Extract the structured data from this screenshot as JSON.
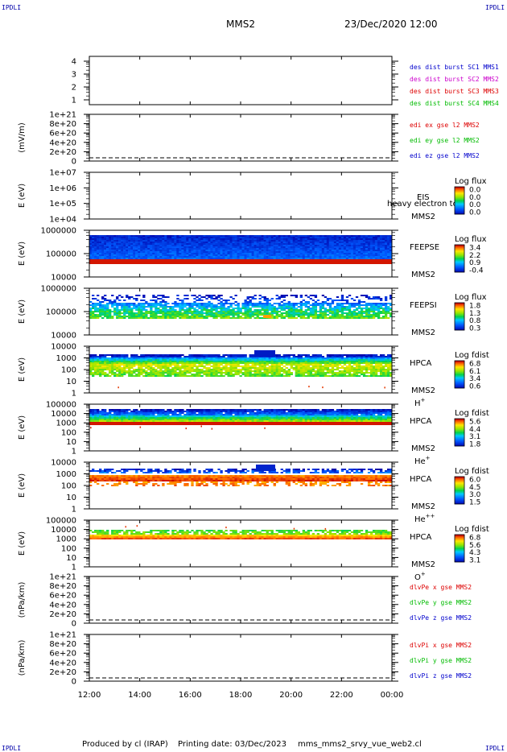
{
  "header": {
    "corner_label": "IPDLI",
    "spacecraft": "MMS2",
    "datetime": "23/Dec/2020 12:00"
  },
  "footer": {
    "produced_by": "Produced by cl (IRAP)",
    "printing_date": "Printing date: 03/Dec/2023",
    "filename": "mms_mms2_srvy_vue_web2.cl"
  },
  "chart_data": {
    "type": "heatmap",
    "x_ticks": [
      "12:00",
      "14:00",
      "16:00",
      "18:00",
      "20:00",
      "22:00",
      "00:00"
    ],
    "x_range_hours": [
      12,
      24
    ],
    "panels": [
      {
        "id": "des-dist",
        "kind": "lines",
        "ylabel": "",
        "y_ticks": [
          "4",
          "3",
          "2",
          "1"
        ],
        "ylim": [
          0.5,
          4.5
        ],
        "legend": [
          {
            "text": "des dist burst SC1 MMS1",
            "color": "#0000cc"
          },
          {
            "text": "des dist burst SC2 MMS2",
            "color": "#cc00cc"
          },
          {
            "text": "des dist burst SC3 MMS3",
            "color": "#dd0000"
          },
          {
            "text": "des dist burst SC4 MMS4",
            "color": "#00bb00"
          }
        ]
      },
      {
        "id": "edi-e",
        "kind": "lines",
        "ylabel": "(mV/m)",
        "y_ticks": [
          "1e+21",
          "8e+20",
          "6e+20",
          "4e+20",
          "2e+20",
          "0"
        ],
        "ylim": [
          0,
          1e+21
        ],
        "zero_line": true,
        "legend": [
          {
            "text": "edi ex gse l2 MMS2",
            "color": "#dd0000"
          },
          {
            "text": "edi ey gse l2 MMS2",
            "color": "#00bb00"
          },
          {
            "text": "edi ez gse l2 MMS2",
            "color": "#0000cc"
          }
        ]
      },
      {
        "id": "eis",
        "kind": "spectrogram",
        "ylabel": "E (eV)",
        "y_ticks": [
          "1e+07",
          "1e+06",
          "1e+05",
          "1e+04"
        ],
        "instrument": "EIS",
        "overlay_note": "heavy electron to",
        "sc": "MMS2",
        "species": "",
        "cbar_title": "Log flux",
        "cbar_ticks": [
          "0.0",
          "0.0",
          "0.0",
          "0.0"
        ],
        "fill": "none"
      },
      {
        "id": "feepse",
        "kind": "spectrogram",
        "ylabel": "E (eV)",
        "y_ticks": [
          "1000000",
          "100000",
          "10000"
        ],
        "instrument": "FEEPSE",
        "sc": "MMS2",
        "species": "",
        "cbar_title": "Log flux",
        "cbar_ticks": [
          "3.4",
          "2.2",
          "0.9",
          "-0.4"
        ],
        "fill": "feepse"
      },
      {
        "id": "feepsi",
        "kind": "spectrogram",
        "ylabel": "E (eV)",
        "y_ticks": [
          "1000000",
          "100000",
          "10000"
        ],
        "instrument": "FEEPSI",
        "sc": "MMS2",
        "species": "",
        "cbar_title": "Log flux",
        "cbar_ticks": [
          "1.8",
          "1.3",
          "0.8",
          "0.3"
        ],
        "fill": "feepsi"
      },
      {
        "id": "hpca-h",
        "kind": "spectrogram",
        "ylabel": "E (eV)",
        "y_ticks": [
          "10000",
          "1000",
          "100",
          "10",
          "1"
        ],
        "instrument": "HPCA",
        "sc": "MMS2",
        "species": "H+",
        "cbar_title": "Log fdist",
        "cbar_ticks": [
          "6.8",
          "6.1",
          "3.4",
          "0.6"
        ],
        "fill": "hpca-h"
      },
      {
        "id": "hpca-he1",
        "kind": "spectrogram",
        "ylabel": "E (eV)",
        "y_ticks": [
          "100000",
          "10000",
          "1000",
          "100",
          "10",
          "1"
        ],
        "instrument": "HPCA",
        "sc": "MMS2",
        "species": "He+",
        "cbar_title": "Log fdist",
        "cbar_ticks": [
          "5.6",
          "4.4",
          "3.1",
          "1.8"
        ],
        "fill": "hpca-he1"
      },
      {
        "id": "hpca-he2",
        "kind": "spectrogram",
        "ylabel": "E (eV)",
        "y_ticks": [
          "10000",
          "1000",
          "100",
          "10",
          "1"
        ],
        "instrument": "HPCA",
        "sc": "MMS2",
        "species": "He++",
        "cbar_title": "Log fdist",
        "cbar_ticks": [
          "6.0",
          "4.5",
          "3.0",
          "1.5"
        ],
        "fill": "hpca-he2"
      },
      {
        "id": "hpca-o",
        "kind": "spectrogram",
        "ylabel": "E (eV)",
        "y_ticks": [
          "100000",
          "10000",
          "1000",
          "100",
          "10",
          "1"
        ],
        "instrument": "HPCA",
        "sc": "MMS2",
        "species": "O+",
        "cbar_title": "Log fdist",
        "cbar_ticks": [
          "6.8",
          "5.6",
          "4.3",
          "3.1"
        ],
        "fill": "hpca-o"
      },
      {
        "id": "dlvpe",
        "kind": "lines",
        "ylabel": "(nPa/km)",
        "y_ticks": [
          "1e+21",
          "8e+20",
          "6e+20",
          "4e+20",
          "2e+20",
          "0"
        ],
        "ylim": [
          0,
          1e+21
        ],
        "zero_line": true,
        "legend": [
          {
            "text": "dlvPe x gse MMS2",
            "color": "#dd0000"
          },
          {
            "text": "dlvPe y gse MMS2",
            "color": "#00bb00"
          },
          {
            "text": "dlvPe z gse MMS2",
            "color": "#0000cc"
          }
        ]
      },
      {
        "id": "dlvpi",
        "kind": "lines",
        "ylabel": "(nPa/km)",
        "y_ticks": [
          "1e+21",
          "8e+20",
          "6e+20",
          "4e+20",
          "2e+20",
          "0"
        ],
        "ylim": [
          0,
          1e+21
        ],
        "zero_line": true,
        "legend": [
          {
            "text": "dlvPi x gse MMS2",
            "color": "#dd0000"
          },
          {
            "text": "dlvPi y gse MMS2",
            "color": "#00bb00"
          },
          {
            "text": "dlvPi z gse MMS2",
            "color": "#0000cc"
          }
        ]
      }
    ]
  }
}
